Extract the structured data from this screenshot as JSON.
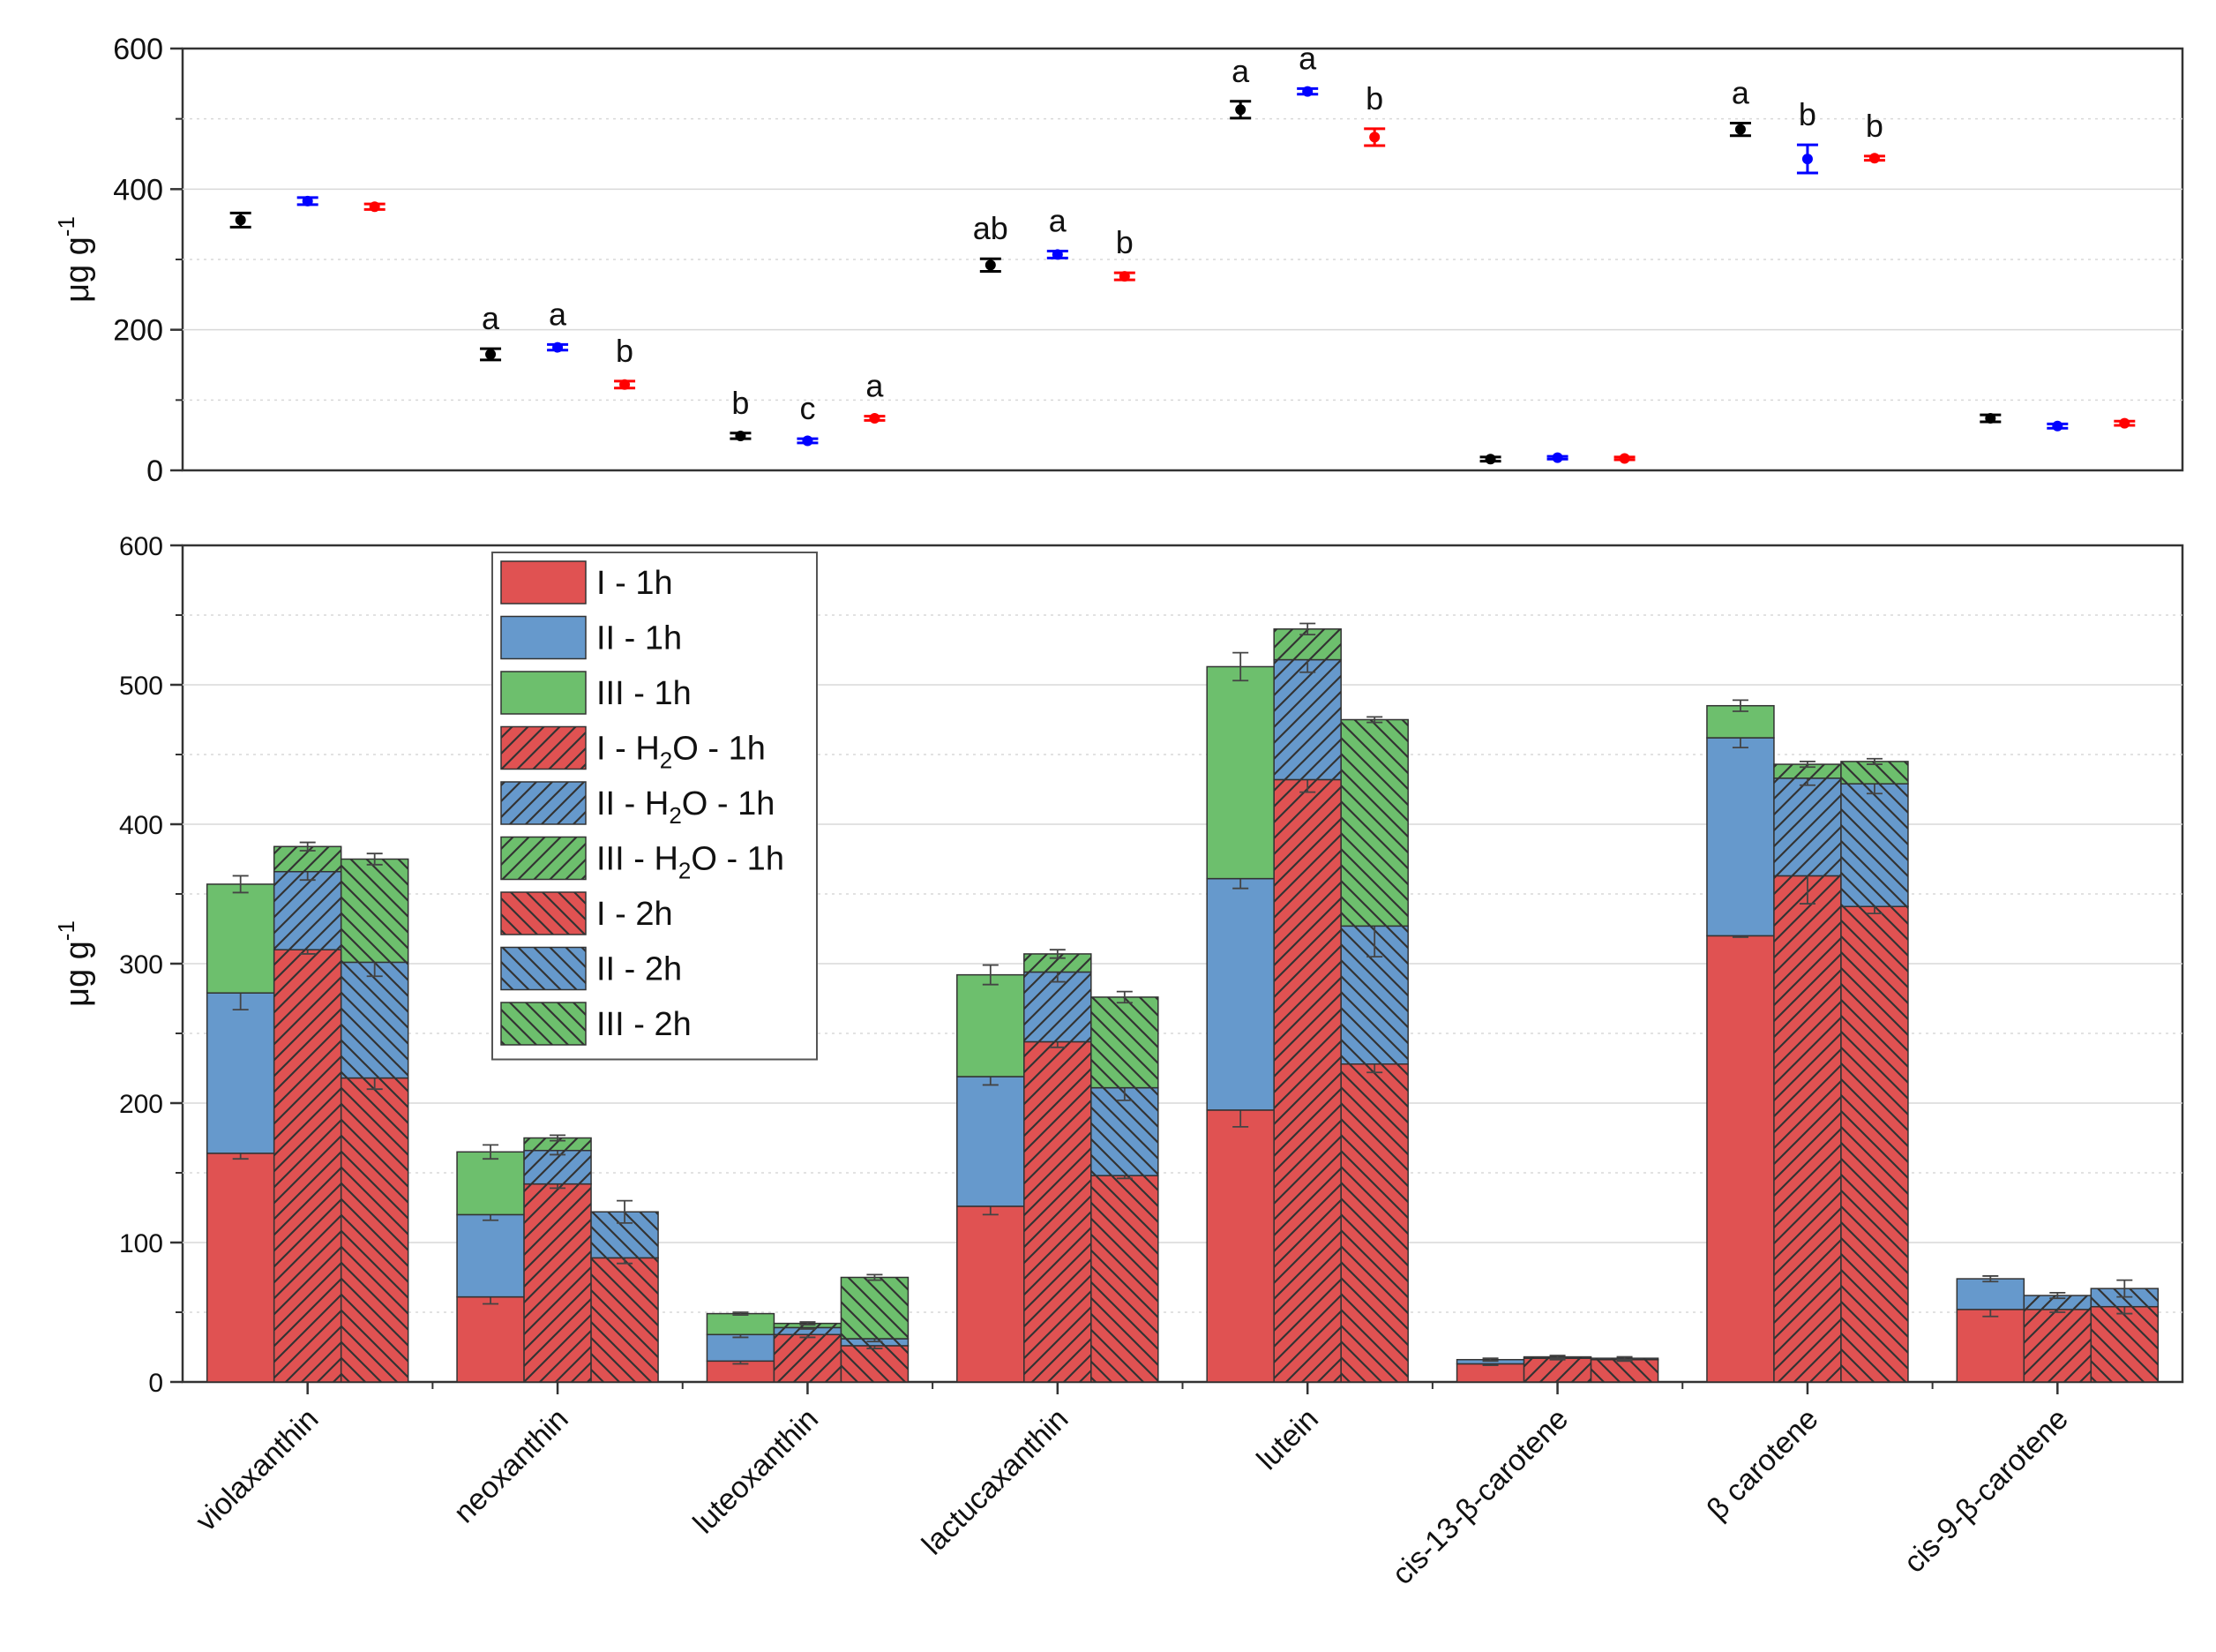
{
  "chart_data": [
    {
      "type": "scatter",
      "title": "",
      "ylabel": "μg g-1",
      "ylabel_parts": {
        "base": "μg g",
        "sup": "-1"
      },
      "ylim": [
        0,
        600
      ],
      "yticks": [
        "0",
        "200",
        "400",
        "600"
      ],
      "categories": [
        "violaxanthin",
        "neoxanthin",
        "luteoxanthin",
        "lactucaxanthin",
        "lutein",
        "cis-13-β-carotene",
        "β carotene",
        "cis-9-β-carotene"
      ],
      "series": [
        {
          "name": "1h",
          "color": "#000000",
          "values": [
            356,
            165,
            49,
            292,
            513,
            16,
            485,
            74
          ],
          "errors": [
            10,
            8,
            4,
            9,
            12,
            3,
            9,
            5
          ]
        },
        {
          "name": "H2O - 1h",
          "color": "#0000ff",
          "values": [
            383,
            175,
            42,
            307,
            539,
            18,
            443,
            63
          ],
          "errors": [
            5,
            4,
            3,
            5,
            4,
            2,
            20,
            3
          ]
        },
        {
          "name": "2h",
          "color": "#ff0000",
          "values": [
            375,
            122,
            74,
            276,
            474,
            17,
            444,
            67
          ],
          "errors": [
            4,
            5,
            3,
            5,
            12,
            2,
            3,
            3
          ]
        }
      ],
      "annotations": [
        [
          "",
          "",
          ""
        ],
        [
          "a",
          "a",
          "b"
        ],
        [
          "b",
          "c",
          "a"
        ],
        [
          "ab",
          "a",
          "b"
        ],
        [
          "a",
          "a",
          "b"
        ],
        [
          "",
          "",
          ""
        ],
        [
          "a",
          "b",
          "b"
        ],
        [
          "",
          "",
          ""
        ]
      ]
    },
    {
      "type": "bar",
      "stacked": true,
      "title": "",
      "ylabel": "μg g-1",
      "ylabel_parts": {
        "base": "μg g",
        "sup": "-1"
      },
      "ylim": [
        0,
        600
      ],
      "yticks": [
        "0",
        "100",
        "200",
        "300",
        "400",
        "500",
        "600"
      ],
      "categories": [
        "violaxanthin",
        "neoxanthin",
        "luteoxanthin",
        "lactucaxanthin",
        "lutein",
        "cis-13-β-carotene",
        "β carotene",
        "cis-9-β-carotene"
      ],
      "legend_position": "top-left",
      "legend": [
        {
          "label": "I - 1h",
          "color": "#e05252",
          "hatch": "none"
        },
        {
          "label": "II - 1h",
          "color": "#6699cc",
          "hatch": "none"
        },
        {
          "label": "III - 1h",
          "color": "#6dbf6d",
          "hatch": "none"
        },
        {
          "label": "I - H2O - 1h",
          "base": "I - H",
          "sub": "2",
          "tail": "O - 1h",
          "color": "#e05252",
          "hatch": "forward"
        },
        {
          "label": "II - H2O - 1h",
          "base": "II - H",
          "sub": "2",
          "tail": "O - 1h",
          "color": "#6699cc",
          "hatch": "forward"
        },
        {
          "label": "III - H2O - 1h",
          "base": "III - H",
          "sub": "2",
          "tail": "O - 1h",
          "color": "#6dbf6d",
          "hatch": "forward"
        },
        {
          "label": "I - 2h",
          "color": "#e05252",
          "hatch": "back"
        },
        {
          "label": "II - 2h",
          "color": "#6699cc",
          "hatch": "back"
        },
        {
          "label": "III - 2h",
          "color": "#6dbf6d",
          "hatch": "back"
        }
      ],
      "groups": [
        {
          "name": "1h",
          "hatch": "none",
          "I": [
            164,
            61,
            15,
            126,
            195,
            13,
            320,
            52
          ],
          "II": [
            115,
            59,
            19,
            93,
            166,
            3,
            142,
            22
          ],
          "III": [
            78,
            45,
            15,
            73,
            152,
            0,
            23,
            0
          ]
        },
        {
          "name": "H2O - 1h",
          "hatch": "forward",
          "I": [
            310,
            142,
            34,
            244,
            432,
            17,
            363,
            52
          ],
          "II": [
            56,
            24,
            5,
            50,
            86,
            1,
            70,
            10
          ],
          "III": [
            18,
            9,
            3,
            13,
            22,
            0,
            10,
            0
          ]
        },
        {
          "name": "2h",
          "hatch": "back",
          "I": [
            218,
            89,
            26,
            148,
            228,
            16,
            341,
            54
          ],
          "II": [
            83,
            33,
            5,
            63,
            99,
            1,
            88,
            13
          ],
          "III": [
            74,
            0,
            44,
            65,
            148,
            0,
            16,
            0
          ]
        }
      ],
      "segment_errors": {
        "1h": {
          "I": [
            4,
            5,
            2,
            6,
            12,
            1,
            1,
            5
          ],
          "II": [
            12,
            4,
            2,
            6,
            7,
            1,
            7,
            2
          ],
          "III": [
            6,
            5,
            1,
            7,
            10,
            0,
            4,
            0
          ]
        },
        "H2O - 1h": {
          "I": [
            3,
            3,
            2,
            4,
            9,
            1,
            20,
            2
          ],
          "II": [
            6,
            3,
            1,
            7,
            9,
            1,
            5,
            2
          ],
          "III": [
            3,
            2,
            1,
            3,
            4,
            0,
            2,
            0
          ]
        },
        "2h": {
          "I": [
            8,
            4,
            2,
            2,
            6,
            1,
            5,
            5
          ],
          "II": [
            10,
            8,
            2,
            9,
            22,
            1,
            7,
            6
          ],
          "III": [
            4,
            0,
            2,
            4,
            2,
            0,
            2,
            0
          ]
        }
      }
    }
  ]
}
